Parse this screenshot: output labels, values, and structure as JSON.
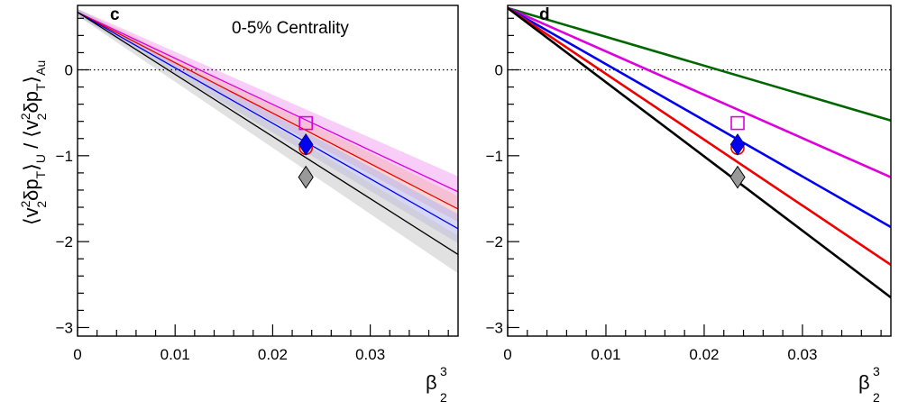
{
  "chart_data": [
    {
      "type": "line",
      "panel_label": "c",
      "annotation": "0-5% Centrality",
      "xlabel": {
        "base": "β",
        "sub": "2",
        "sup": "3"
      },
      "ylabel": {
        "left_open": "⟨v",
        "sup1": "2",
        "sub1": "2",
        "mid1": "δp",
        "sub2": "T",
        "close1": "⟩",
        "sub3": "U",
        "slash": " / ⟨v",
        "sup2": "2",
        "sub4": "2",
        "mid2": "δp",
        "sub5": "T",
        "close2": "⟩",
        "sub6": "Au"
      },
      "xlim": [
        0,
        0.039
      ],
      "ylim": [
        -3.1,
        0.75
      ],
      "xticks": [
        0,
        0.01,
        0.02,
        0.03
      ],
      "xtick_labels": [
        "0",
        "0.01",
        "0.02",
        "0.03"
      ],
      "yticks": [
        0,
        -1,
        -2,
        -3
      ],
      "ytick_labels": [
        "0",
        "−1",
        "−2",
        "−3"
      ],
      "reference_line_y": 0,
      "series": [
        {
          "color": "#dd00dd",
          "band": "#f2a6f2",
          "x": [
            0,
            0.039
          ],
          "y": [
            0.67,
            -1.42
          ],
          "band_half_width": [
            0.04,
            0.18
          ]
        },
        {
          "color": "#ee0000",
          "band": "#f3b4b4",
          "x": [
            0,
            0.039
          ],
          "y": [
            0.67,
            -1.62
          ],
          "band_half_width": [
            0.04,
            0.15
          ]
        },
        {
          "color": "#0000ee",
          "band": "#b4b4ee",
          "x": [
            0,
            0.039
          ],
          "y": [
            0.67,
            -1.85
          ],
          "band_half_width": [
            0.04,
            0.17
          ]
        },
        {
          "color": "#000000",
          "band": "#c8c8c8",
          "x": [
            0,
            0.039
          ],
          "y": [
            0.67,
            -2.15
          ],
          "band_half_width": [
            0.04,
            0.22
          ]
        }
      ],
      "points": [
        {
          "shape": "square-open",
          "color": "#dd00dd",
          "x": 0.0234,
          "y": -0.62
        },
        {
          "shape": "circle-open",
          "color": "#ee0000",
          "x": 0.0234,
          "y": -0.91
        },
        {
          "shape": "diamond-filled",
          "color": "#0000ee",
          "x": 0.0234,
          "y": -0.87
        },
        {
          "shape": "diamond-filled",
          "color": "#999999",
          "x": 0.0234,
          "y": -1.25
        }
      ]
    },
    {
      "type": "line",
      "panel_label": "d",
      "annotation": "",
      "xlabel": {
        "base": "β",
        "sub": "2",
        "sup": "3"
      },
      "ylabel": null,
      "xlim": [
        0,
        0.039
      ],
      "ylim": [
        -3.1,
        0.75
      ],
      "xticks": [
        0,
        0.01,
        0.02,
        0.03
      ],
      "xtick_labels": [
        "0",
        "0.01",
        "0.02",
        "0.03"
      ],
      "yticks": [
        0,
        -1,
        -2,
        -3
      ],
      "ytick_labels": [
        "0",
        "−1",
        "−2",
        "−3"
      ],
      "reference_line_y": 0,
      "series": [
        {
          "color": "#006600",
          "x": [
            0,
            0.039
          ],
          "y": [
            0.72,
            -0.59
          ]
        },
        {
          "color": "#dd00dd",
          "x": [
            0,
            0.039
          ],
          "y": [
            0.72,
            -1.25
          ]
        },
        {
          "color": "#0000ee",
          "x": [
            0,
            0.039
          ],
          "y": [
            0.72,
            -1.83
          ]
        },
        {
          "color": "#ee0000",
          "x": [
            0,
            0.039
          ],
          "y": [
            0.72,
            -2.27
          ]
        },
        {
          "color": "#000000",
          "x": [
            0,
            0.039
          ],
          "y": [
            0.72,
            -2.65
          ]
        }
      ],
      "points": [
        {
          "shape": "square-open",
          "color": "#dd00dd",
          "x": 0.0234,
          "y": -0.62
        },
        {
          "shape": "circle-open",
          "color": "#ee0000",
          "x": 0.0234,
          "y": -0.91
        },
        {
          "shape": "diamond-filled",
          "color": "#0000ee",
          "x": 0.0234,
          "y": -0.87
        },
        {
          "shape": "diamond-filled",
          "color": "#999999",
          "x": 0.0234,
          "y": -1.25
        }
      ]
    }
  ]
}
